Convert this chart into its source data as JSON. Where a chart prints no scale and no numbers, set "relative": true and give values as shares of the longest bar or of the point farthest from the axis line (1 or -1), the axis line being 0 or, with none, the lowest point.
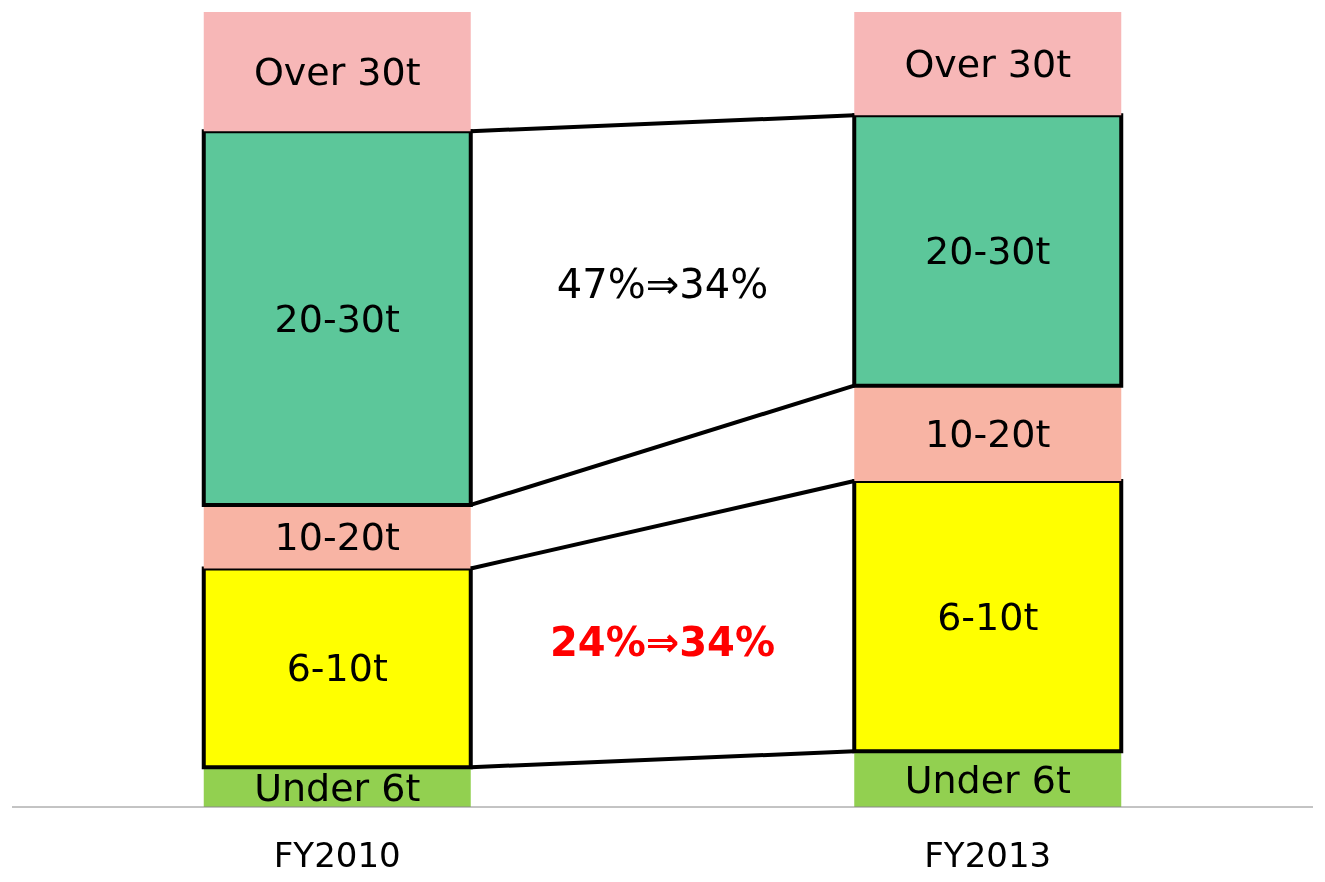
{
  "chart_data": {
    "type": "bar",
    "stacked": true,
    "relative": true,
    "categories": [
      "FY2010",
      "FY2013"
    ],
    "series": [
      {
        "name": "Under 6t",
        "color": "#92d050",
        "values": [
          0.05,
          0.07
        ]
      },
      {
        "name": "6-10t",
        "color": "#ffff00",
        "values": [
          0.25,
          0.34
        ]
      },
      {
        "name": "10-20t",
        "color": "#f8b4a4",
        "values": [
          0.08,
          0.12
        ]
      },
      {
        "name": "20-30t",
        "color": "#5cc79a",
        "values": [
          0.47,
          0.34
        ]
      },
      {
        "name": "Over 30t",
        "color": "#f7b7b7",
        "values": [
          0.15,
          0.13
        ]
      }
    ],
    "annotations": [
      "47%⇒34%",
      "24%⇒34%"
    ]
  }
}
